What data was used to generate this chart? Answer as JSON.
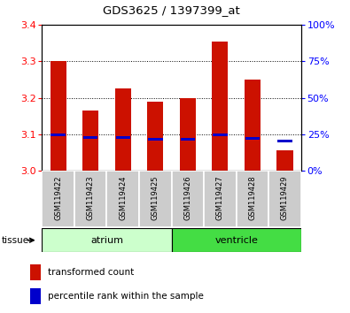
{
  "title": "GDS3625 / 1397399_at",
  "samples": [
    "GSM119422",
    "GSM119423",
    "GSM119424",
    "GSM119425",
    "GSM119426",
    "GSM119427",
    "GSM119428",
    "GSM119429"
  ],
  "transformed_count": [
    3.3,
    3.165,
    3.225,
    3.19,
    3.2,
    3.355,
    3.25,
    3.055
  ],
  "percentile_rank": [
    24.5,
    22.5,
    22.5,
    21.5,
    21.5,
    24.5,
    22.0,
    20.5
  ],
  "ylim_left": [
    3.0,
    3.4
  ],
  "ylim_right": [
    0,
    100
  ],
  "yticks_left": [
    3.0,
    3.1,
    3.2,
    3.3,
    3.4
  ],
  "yticks_right": [
    0,
    25,
    50,
    75,
    100
  ],
  "bar_color_red": "#cc1100",
  "bar_color_blue": "#0000cc",
  "plot_bg_color": "#ffffff",
  "atrium_bg": "#ccffcc",
  "ventricle_bg": "#44dd44",
  "tissue_label": "tissue",
  "legend_red": "transformed count",
  "legend_blue": "percentile rank within the sample",
  "label_bg": "#cccccc"
}
